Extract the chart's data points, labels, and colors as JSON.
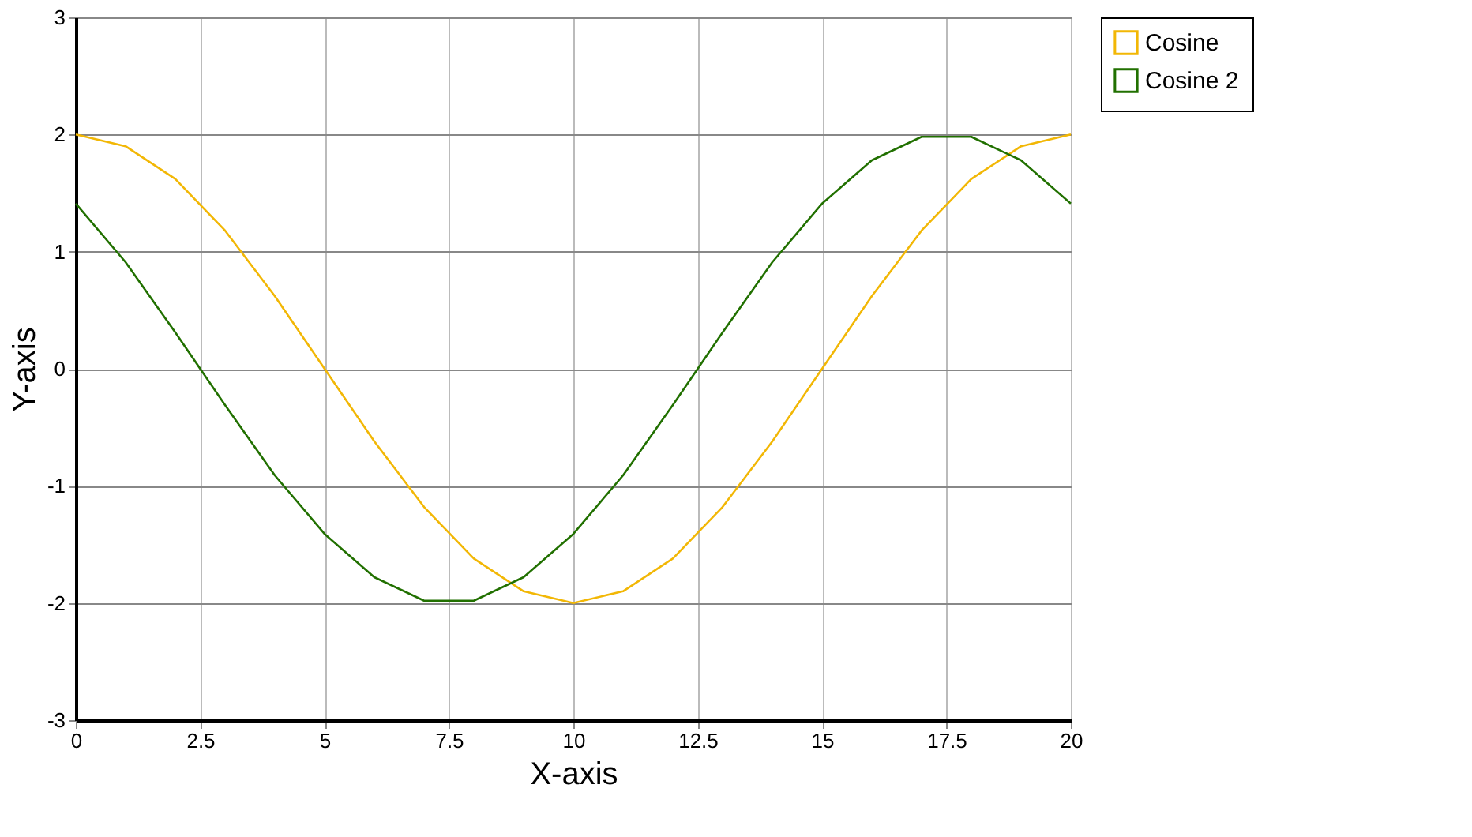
{
  "chart_data": {
    "type": "line",
    "xlabel": "X-axis",
    "ylabel": "Y-axis",
    "x": [
      0,
      1,
      2,
      3,
      4,
      5,
      6,
      7,
      8,
      9,
      10,
      11,
      12,
      13,
      14,
      15,
      16,
      17,
      18,
      19,
      20
    ],
    "series": [
      {
        "name": "Cosine",
        "color": "#f2b705",
        "values": [
          2,
          1.9,
          1.62,
          1.18,
          0.62,
          0,
          -0.62,
          -1.18,
          -1.62,
          -1.9,
          -2,
          -1.9,
          -1.62,
          -1.18,
          -0.62,
          0,
          0.62,
          1.18,
          1.62,
          1.9,
          2
        ]
      },
      {
        "name": "Cosine 2",
        "color": "#217000",
        "values": [
          1.41,
          0.91,
          0.31,
          -0.31,
          -0.91,
          -1.41,
          -1.78,
          -1.98,
          -1.98,
          -1.78,
          -1.41,
          -0.91,
          -0.31,
          0.31,
          0.91,
          1.41,
          1.78,
          1.98,
          1.98,
          1.78,
          1.41
        ]
      }
    ],
    "xlim": [
      0,
      20
    ],
    "xticks": [
      0,
      2.5,
      5,
      7.5,
      10,
      12.5,
      15,
      17.5,
      20
    ],
    "ylim": [
      -3,
      3
    ],
    "yticks": [
      -3,
      -2,
      -1,
      0,
      1,
      2,
      3
    ],
    "grid": true,
    "legend": "right",
    "marker": "none",
    "line_style": "solid"
  }
}
